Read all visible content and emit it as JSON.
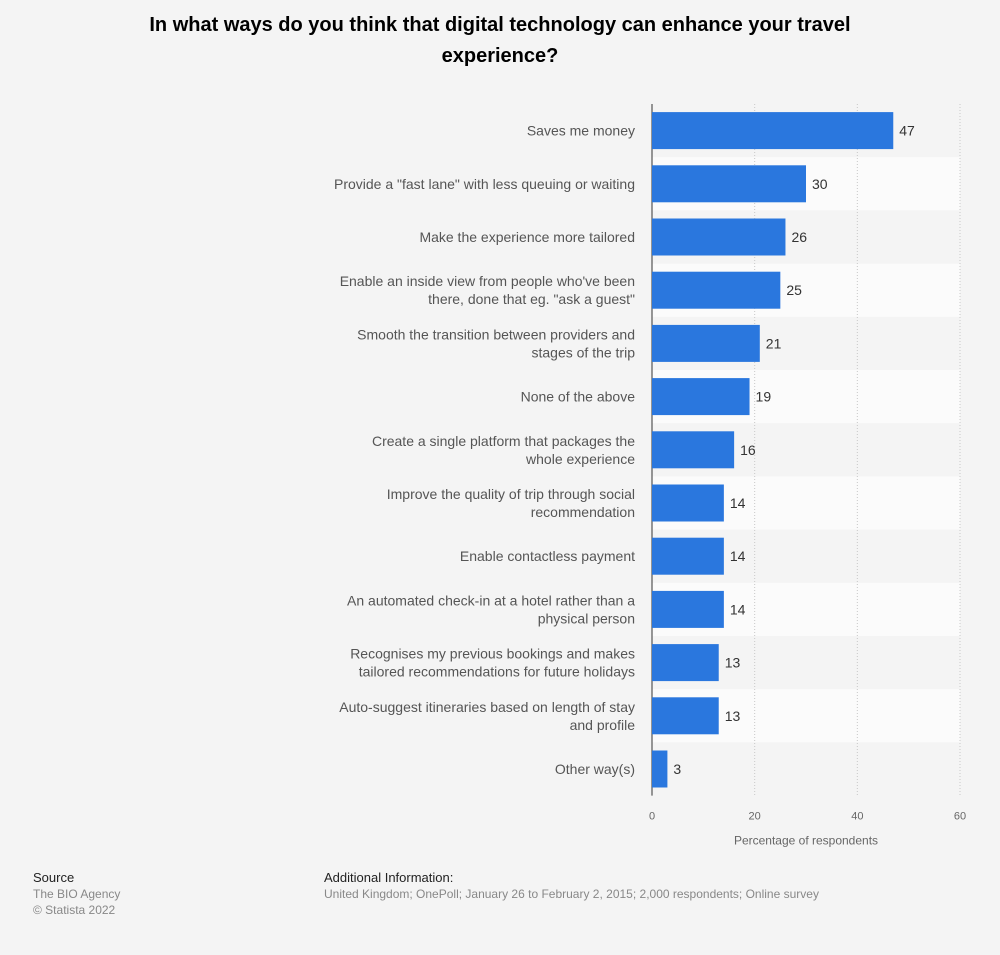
{
  "title": "In what ways do you think that digital technology can enhance your travel experience?",
  "chart_data": {
    "type": "bar",
    "orientation": "horizontal",
    "categories": [
      "Saves me money",
      "Provide a \"fast lane\" with less queuing or waiting",
      "Make the experience more tailored",
      "Enable an inside view from people who've been there, done that eg. \"ask a guest\"",
      "Smooth the transition between providers and stages of the trip",
      "None of the above",
      "Create a single platform that packages the whole experience",
      "Improve the quality of trip through social recommendation",
      "Enable contactless payment",
      "An automated check-in at a hotel rather than a physical person",
      "Recognises my previous bookings and makes tailored recommendations for future holidays",
      "Auto-suggest itineraries based on length of stay and profile",
      "Other way(s)"
    ],
    "category_lines": [
      [
        "Saves me money"
      ],
      [
        "Provide a \"fast lane\" with less queuing or waiting"
      ],
      [
        "Make the experience more tailored"
      ],
      [
        "Enable an inside view from people who've been",
        "there, done that eg. \"ask a guest\""
      ],
      [
        "Smooth the transition between providers and",
        "stages of the trip"
      ],
      [
        "None of the above"
      ],
      [
        "Create a single platform that packages the",
        "whole experience"
      ],
      [
        "Improve the quality of trip through social",
        "recommendation"
      ],
      [
        "Enable contactless payment"
      ],
      [
        "An automated check-in at a hotel rather than a",
        "physical person"
      ],
      [
        "Recognises my previous bookings and makes",
        "tailored recommendations for future holidays"
      ],
      [
        "Auto-suggest itineraries based on length of stay",
        "and profile"
      ],
      [
        "Other way(s)"
      ]
    ],
    "values": [
      47,
      30,
      26,
      25,
      21,
      19,
      16,
      14,
      14,
      14,
      13,
      13,
      3
    ],
    "xlabel": "Percentage of respondents",
    "xlim": [
      0,
      60
    ],
    "xticks": [
      0,
      20,
      40,
      60
    ],
    "bar_color": "#2a77de",
    "grid": true
  },
  "footer": {
    "source_heading": "Source",
    "source_name": "The BIO Agency",
    "copyright": "© Statista 2022",
    "info_heading": "Additional Information:",
    "info_text": "United Kingdom; OnePoll; January 26 to February 2, 2015; 2,000 respondents; Online survey"
  }
}
